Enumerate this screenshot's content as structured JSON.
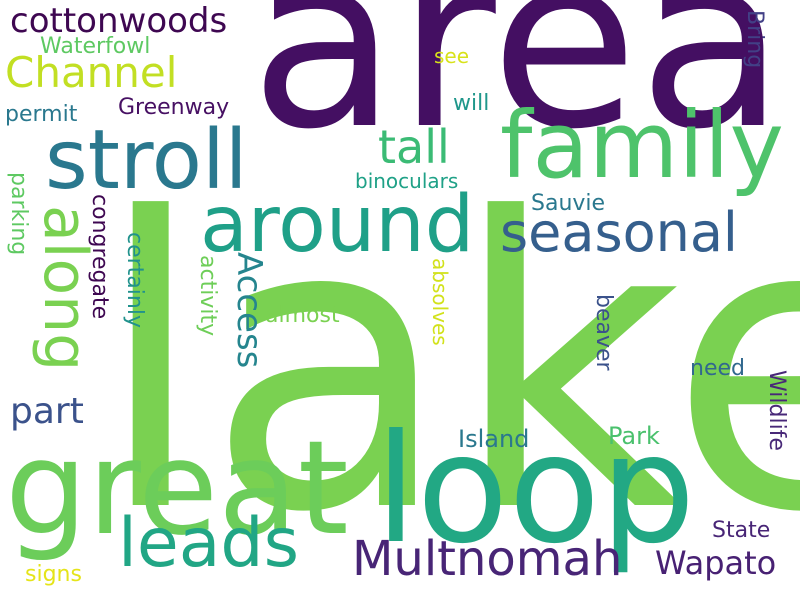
{
  "words": [
    {
      "text": "lake",
      "color": "#7ad151"
    },
    {
      "text": "area",
      "color": "#440f62"
    },
    {
      "text": "loop",
      "color": "#22a884"
    },
    {
      "text": "great",
      "color": "#6ccd5a"
    },
    {
      "text": "family",
      "color": "#4ec36b"
    },
    {
      "text": "stroll",
      "color": "#2a788e"
    },
    {
      "text": "around",
      "color": "#1fa088"
    },
    {
      "text": "leads",
      "color": "#21a685"
    },
    {
      "text": "seasonal",
      "color": "#355f8d"
    },
    {
      "text": "Multnomah",
      "color": "#482576"
    },
    {
      "text": "Channel",
      "color": "#c2df23"
    },
    {
      "text": "along",
      "color": "#7ad151"
    },
    {
      "text": "cottonwoods",
      "color": "#3e0751"
    },
    {
      "text": "tall",
      "color": "#3bbb75"
    },
    {
      "text": "Access",
      "color": "#25858e"
    },
    {
      "text": "part",
      "color": "#3b528b"
    },
    {
      "text": "Wapato",
      "color": "#482173"
    },
    {
      "text": "Waterfowl",
      "color": "#5ec962"
    },
    {
      "text": "Greenway",
      "color": "#471063"
    },
    {
      "text": "permit",
      "color": "#2a788e"
    },
    {
      "text": "see",
      "color": "#d8e219"
    },
    {
      "text": "will",
      "color": "#1f978b"
    },
    {
      "text": "Bring",
      "color": "#424086"
    },
    {
      "text": "binoculars",
      "color": "#1fa187"
    },
    {
      "text": "Sauvie",
      "color": "#2a788e"
    },
    {
      "text": "parking",
      "color": "#5ec962"
    },
    {
      "text": "congregate",
      "color": "#3e0751"
    },
    {
      "text": "certainly",
      "color": "#20928c"
    },
    {
      "text": "activity",
      "color": "#6ece58"
    },
    {
      "text": "almost",
      "color": "#7ad151"
    },
    {
      "text": "absolves",
      "color": "#d2e21b"
    },
    {
      "text": "beaver",
      "color": "#3b528b"
    },
    {
      "text": "need",
      "color": "#31688e"
    },
    {
      "text": "Wildlife",
      "color": "#482878"
    },
    {
      "text": "Island",
      "color": "#2a788e"
    },
    {
      "text": "Park",
      "color": "#4ac16d"
    },
    {
      "text": "State",
      "color": "#482576"
    },
    {
      "text": "signs",
      "color": "#e5e419"
    }
  ]
}
